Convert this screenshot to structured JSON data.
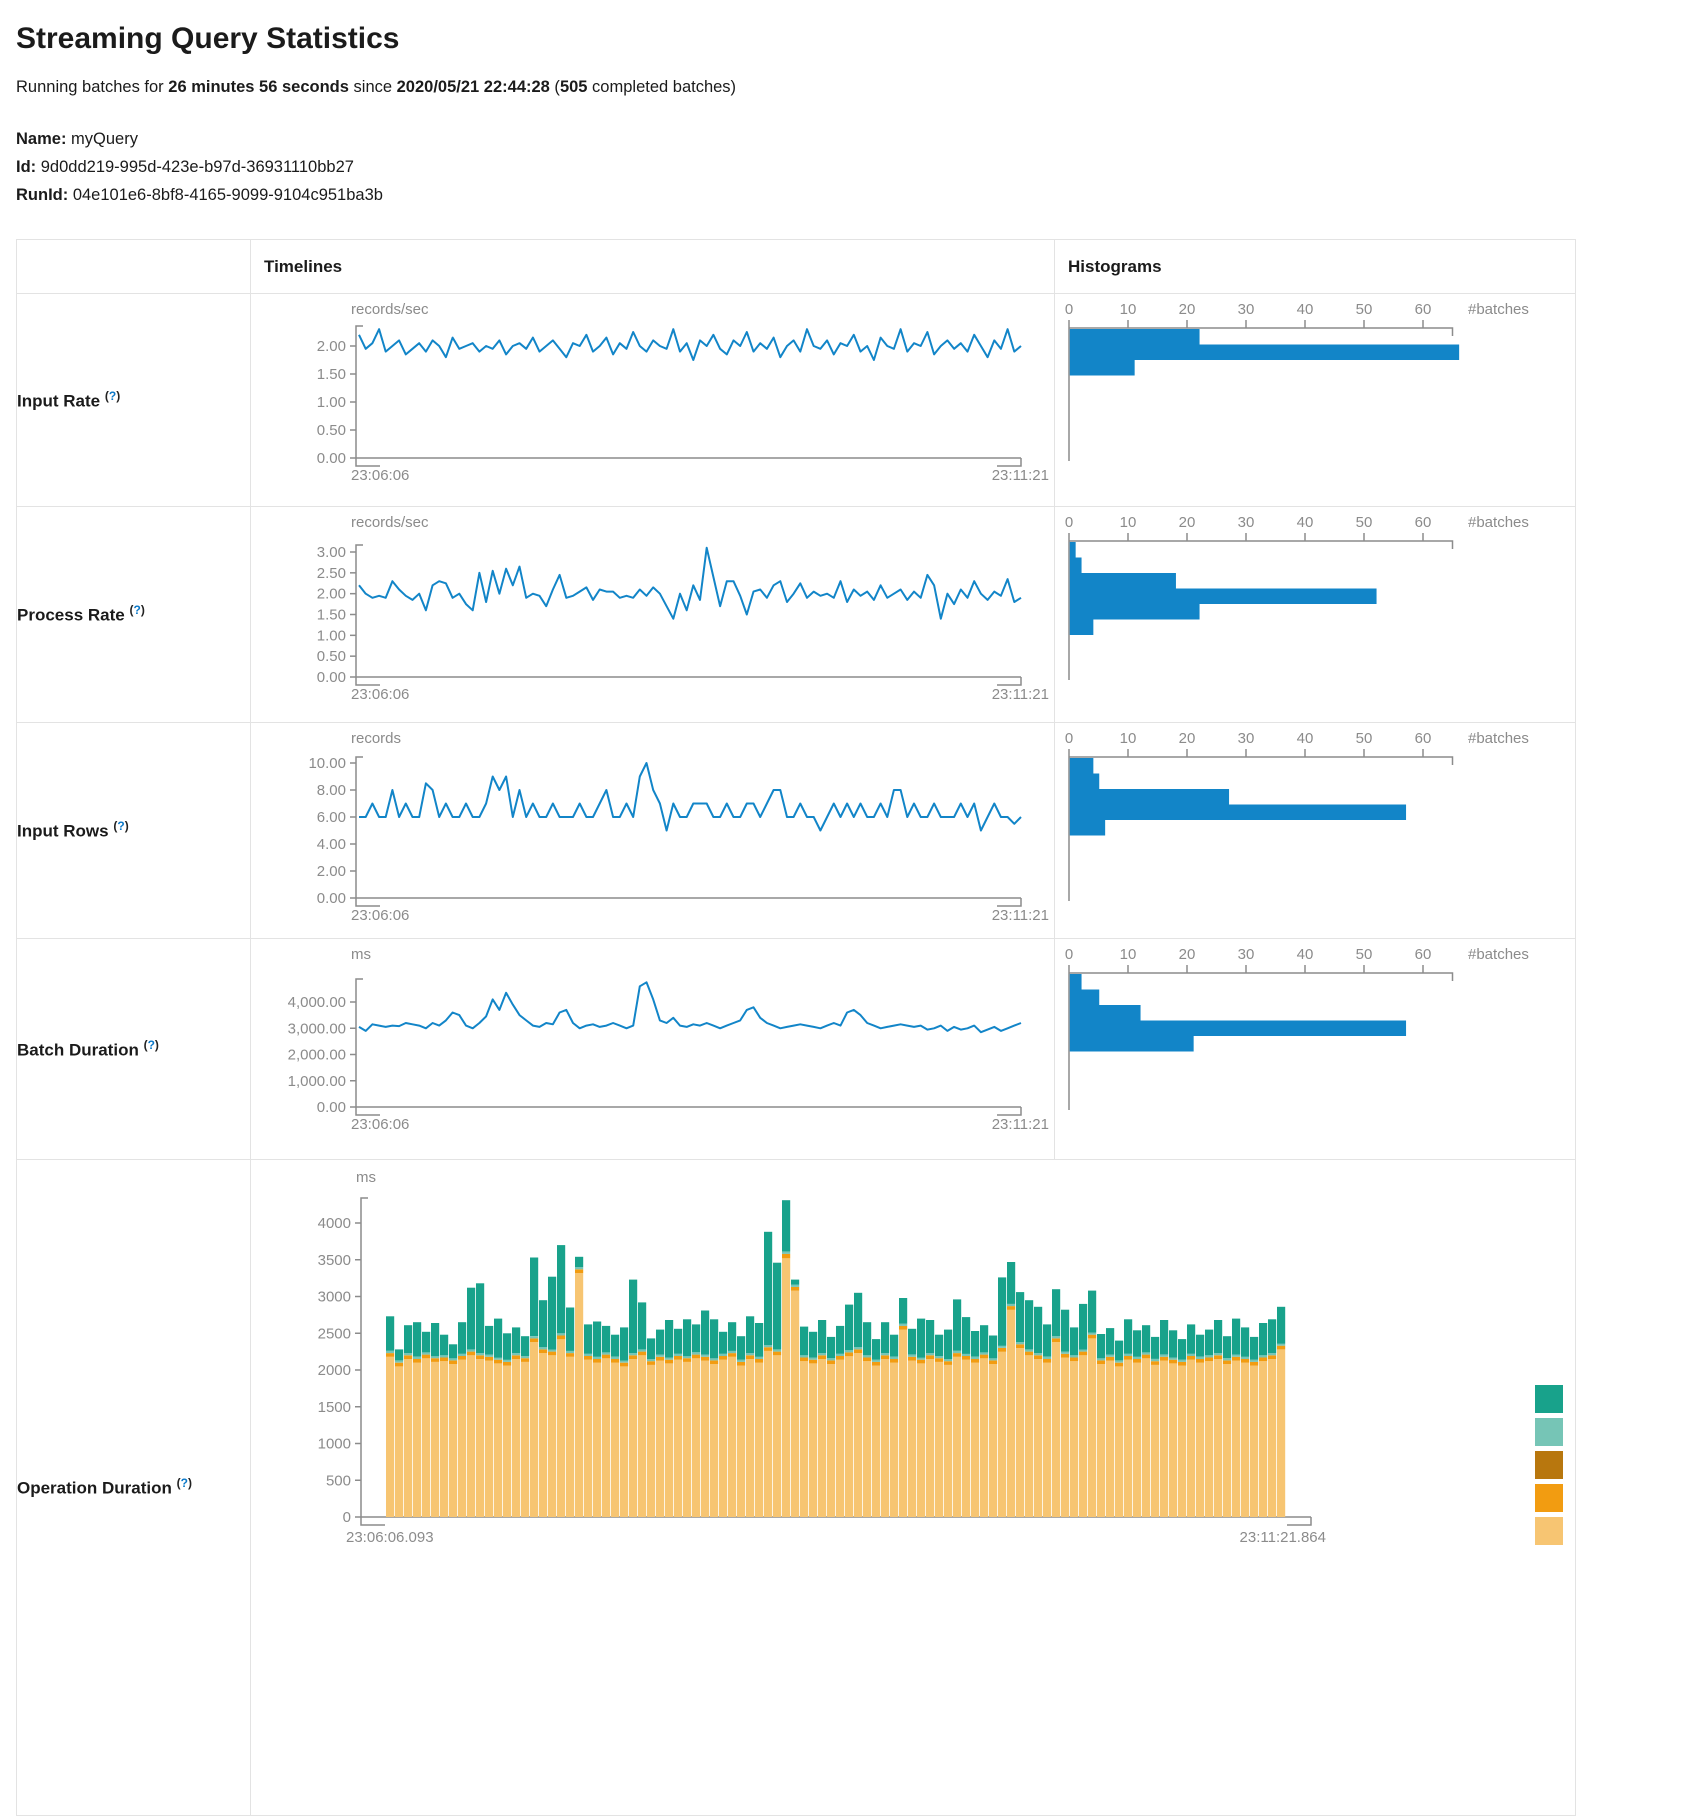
{
  "page": {
    "title": "Streaming Query Statistics",
    "subtitle": {
      "prefix": "Running batches for ",
      "duration": "26 minutes 56 seconds",
      "mid": " since ",
      "start_time": "2020/05/21 22:44:28",
      "paren": " (",
      "completed_count": "505",
      "suffix": " completed batches)"
    },
    "query": {
      "name_label": "Name:",
      "name": " myQuery",
      "id_label": "Id:",
      "id": " 9d0dd219-995d-423e-b97d-36931110bb27",
      "runid_label": "RunId:",
      "runid": " 04e101e6-8bf8-4165-9099-9104c951ba3b"
    }
  },
  "table": {
    "col_timelines": "Timelines",
    "col_histograms": "Histograms",
    "help_open": "(",
    "help_mark": "?",
    "help_close": ")",
    "rows": [
      {
        "label": "Input Rate"
      },
      {
        "label": "Process Rate"
      },
      {
        "label": "Input Rows"
      },
      {
        "label": "Batch Duration"
      },
      {
        "label": "Operation Duration"
      }
    ]
  },
  "chart_data": [
    {
      "id": "input-rate-timeline",
      "type": "line",
      "title": "Input Rate timeline",
      "unit": "records/sec",
      "x_start": "23:06:06",
      "x_end": "23:11:21",
      "y_tick_labels": [
        "2.00",
        "1.50",
        "1.00",
        "0.50",
        "0.00"
      ],
      "y_max_tick": 2.0,
      "color": "#1285c8",
      "values": [
        2.2,
        1.95,
        2.05,
        2.3,
        1.9,
        2.0,
        2.1,
        1.85,
        1.95,
        2.05,
        1.9,
        2.1,
        2.0,
        1.8,
        2.15,
        1.95,
        2.0,
        2.05,
        1.9,
        2.0,
        1.95,
        2.1,
        1.85,
        2.0,
        2.05,
        1.95,
        2.15,
        1.9,
        2.0,
        2.1,
        1.95,
        1.8,
        2.05,
        2.0,
        2.2,
        1.9,
        2.0,
        2.15,
        1.85,
        2.05,
        1.95,
        2.25,
        2.0,
        1.9,
        2.1,
        2.0,
        1.95,
        2.3,
        1.9,
        2.05,
        1.75,
        2.1,
        2.0,
        2.2,
        1.95,
        1.85,
        2.1,
        2.0,
        2.25,
        1.9,
        2.05,
        1.95,
        2.15,
        1.8,
        2.0,
        2.1,
        1.9,
        2.3,
        2.0,
        1.95,
        2.1,
        1.85,
        2.05,
        2.0,
        2.2,
        1.9,
        2.0,
        1.75,
        2.15,
        2.0,
        1.95,
        2.3,
        1.9,
        2.05,
        2.0,
        2.25,
        1.85,
        2.0,
        2.1,
        1.95,
        2.05,
        1.9,
        2.2,
        2.0,
        1.8,
        2.1,
        1.95,
        2.3,
        1.9,
        2.0
      ]
    },
    {
      "id": "input-rate-histogram",
      "type": "hist",
      "title": "Input Rate histogram",
      "xlabel": "#batches",
      "x_tick_labels": [
        "0",
        "10",
        "20",
        "30",
        "40",
        "50",
        "60"
      ],
      "color": "#1285c8",
      "values": [
        22,
        66,
        11
      ]
    },
    {
      "id": "process-rate-timeline",
      "type": "line",
      "title": "Process Rate timeline",
      "unit": "records/sec",
      "x_start": "23:06:06",
      "x_end": "23:11:21",
      "y_tick_labels": [
        "3.00",
        "2.50",
        "2.00",
        "1.50",
        "1.00",
        "0.50",
        "0.00"
      ],
      "y_max_tick": 3.0,
      "color": "#1285c8",
      "values": [
        2.2,
        2.0,
        1.9,
        1.95,
        1.9,
        2.3,
        2.1,
        1.95,
        1.85,
        2.0,
        1.6,
        2.2,
        2.3,
        2.25,
        1.9,
        2.0,
        1.75,
        1.6,
        2.5,
        1.8,
        2.55,
        2.0,
        2.6,
        2.2,
        2.65,
        1.9,
        2.0,
        1.95,
        1.7,
        2.1,
        2.45,
        1.9,
        1.95,
        2.05,
        2.15,
        1.85,
        2.1,
        2.05,
        2.05,
        1.9,
        1.95,
        1.9,
        2.1,
        1.95,
        2.15,
        2.0,
        1.7,
        1.4,
        2.0,
        1.6,
        2.2,
        1.85,
        3.1,
        2.4,
        1.7,
        2.3,
        2.3,
        1.95,
        1.5,
        2.05,
        2.1,
        1.9,
        2.2,
        2.3,
        1.8,
        2.0,
        2.25,
        1.9,
        2.05,
        1.95,
        2.0,
        1.9,
        2.3,
        1.8,
        2.1,
        1.95,
        2.05,
        1.85,
        2.2,
        1.9,
        2.0,
        2.1,
        1.85,
        2.05,
        1.9,
        2.45,
        2.2,
        1.4,
        2.0,
        1.75,
        2.1,
        1.9,
        2.3,
        2.0,
        1.85,
        2.05,
        1.95,
        2.35,
        1.8,
        1.9
      ]
    },
    {
      "id": "process-rate-histogram",
      "type": "hist",
      "title": "Process Rate histogram",
      "xlabel": "#batches",
      "x_tick_labels": [
        "0",
        "10",
        "20",
        "30",
        "40",
        "50",
        "60"
      ],
      "color": "#1285c8",
      "values": [
        1,
        2,
        18,
        52,
        22,
        4
      ]
    },
    {
      "id": "input-rows-timeline",
      "type": "line",
      "title": "Input Rows timeline",
      "unit": "records",
      "x_start": "23:06:06",
      "x_end": "23:11:21",
      "y_tick_labels": [
        "10.00",
        "8.00",
        "6.00",
        "4.00",
        "2.00",
        "0.00"
      ],
      "y_max_tick": 10,
      "color": "#1285c8",
      "values": [
        6,
        6,
        7,
        6,
        6,
        8,
        6,
        7,
        6,
        6,
        8.5,
        8,
        6,
        7,
        6,
        6,
        7,
        6,
        6,
        7,
        9,
        8,
        9,
        6,
        8,
        6,
        7,
        6,
        6,
        7,
        6,
        6,
        6,
        7,
        6,
        6,
        7,
        8,
        6,
        6,
        7,
        6,
        9,
        10,
        8,
        7,
        5,
        7,
        6,
        6,
        7,
        7,
        7,
        6,
        6,
        7,
        6,
        6,
        7,
        7,
        6,
        7,
        8,
        8,
        6,
        6,
        7,
        6,
        6,
        5,
        6,
        7,
        6,
        7,
        6,
        7,
        6,
        6,
        7,
        6,
        8,
        8,
        6,
        7,
        6,
        6,
        7,
        6,
        6,
        6,
        7,
        6,
        7,
        5,
        6,
        7,
        6,
        6,
        5.5,
        6
      ]
    },
    {
      "id": "input-rows-histogram",
      "type": "hist",
      "title": "Input Rows histogram",
      "xlabel": "#batches",
      "x_tick_labels": [
        "0",
        "10",
        "20",
        "30",
        "40",
        "50",
        "60"
      ],
      "color": "#1285c8",
      "values": [
        4,
        5,
        27,
        57,
        6
      ]
    },
    {
      "id": "batch-duration-timeline",
      "type": "line",
      "title": "Batch Duration timeline",
      "unit": "ms",
      "x_start": "23:06:06",
      "x_end": "23:11:21",
      "y_tick_labels": [
        "4,000.00",
        "3,000.00",
        "2,000.00",
        "1,000.00",
        "0.00"
      ],
      "y_max_tick": 4000,
      "color": "#1285c8",
      "values": [
        3050,
        2900,
        3150,
        3100,
        3050,
        3100,
        3080,
        3200,
        3150,
        3100,
        3000,
        3200,
        3100,
        3300,
        3600,
        3500,
        3100,
        3000,
        3200,
        3450,
        4100,
        3700,
        4350,
        3900,
        3500,
        3300,
        3100,
        3050,
        3200,
        3150,
        3600,
        3700,
        3200,
        3000,
        3100,
        3150,
        3050,
        3100,
        3200,
        3100,
        3000,
        3100,
        4600,
        4750,
        4100,
        3300,
        3200,
        3400,
        3100,
        3050,
        3150,
        3100,
        3200,
        3100,
        3000,
        3100,
        3200,
        3300,
        3700,
        3800,
        3400,
        3200,
        3100,
        3000,
        3050,
        3100,
        3150,
        3100,
        3050,
        3000,
        3100,
        3200,
        3100,
        3600,
        3700,
        3500,
        3200,
        3100,
        3000,
        3050,
        3100,
        3150,
        3100,
        3050,
        3100,
        2950,
        3000,
        3100,
        2900,
        3050,
        2950,
        3000,
        3100,
        2850,
        2950,
        3050,
        2900,
        3000,
        3100,
        3200
      ]
    },
    {
      "id": "batch-duration-histogram",
      "type": "hist",
      "title": "Batch Duration histogram",
      "xlabel": "#batches",
      "x_tick_labels": [
        "0",
        "10",
        "20",
        "30",
        "40",
        "50",
        "60"
      ],
      "color": "#1285c8",
      "values": [
        2,
        5,
        12,
        57,
        21
      ]
    },
    {
      "id": "operation-duration",
      "type": "stacked",
      "title": "Operation Duration",
      "unit": "ms",
      "x_start": "23:06:06.093",
      "x_end": "23:11:21.864",
      "y_tick_labels": [
        "4000",
        "3500",
        "3000",
        "2500",
        "2000",
        "1500",
        "1000",
        "500",
        "0"
      ],
      "y_max_tick": 4000,
      "colors": {
        "tan": "#f7c572",
        "orange": "#f29c11",
        "gold": "#b8770e",
        "lightteal": "#76c5b6",
        "teal": "#18a28b"
      },
      "legend_order_top_to_bottom": [
        "teal",
        "lightteal",
        "gold",
        "orange",
        "tan"
      ],
      "stack_order_bottom_up": [
        "tan",
        "orange",
        "lightteal",
        "teal"
      ],
      "bars": [
        [
          2180,
          50,
          30,
          470
        ],
        [
          2050,
          50,
          30,
          150
        ],
        [
          2150,
          50,
          30,
          380
        ],
        [
          2100,
          50,
          30,
          470
        ],
        [
          2160,
          50,
          30,
          280
        ],
        [
          2110,
          50,
          30,
          450
        ],
        [
          2120,
          50,
          30,
          280
        ],
        [
          2080,
          50,
          30,
          190
        ],
        [
          2140,
          50,
          30,
          430
        ],
        [
          2200,
          50,
          30,
          840
        ],
        [
          2150,
          50,
          30,
          950
        ],
        [
          2130,
          50,
          30,
          390
        ],
        [
          2090,
          50,
          30,
          530
        ],
        [
          2060,
          50,
          30,
          360
        ],
        [
          2150,
          50,
          30,
          350
        ],
        [
          2110,
          50,
          30,
          270
        ],
        [
          2380,
          50,
          30,
          1070
        ],
        [
          2230,
          50,
          30,
          640
        ],
        [
          2200,
          50,
          30,
          990
        ],
        [
          2420,
          50,
          30,
          1200
        ],
        [
          2180,
          50,
          30,
          590
        ],
        [
          3320,
          50,
          30,
          140
        ],
        [
          2140,
          50,
          30,
          400
        ],
        [
          2100,
          50,
          30,
          480
        ],
        [
          2160,
          50,
          30,
          360
        ],
        [
          2100,
          50,
          30,
          300
        ],
        [
          2050,
          50,
          30,
          450
        ],
        [
          2150,
          50,
          30,
          1000
        ],
        [
          2200,
          50,
          30,
          640
        ],
        [
          2070,
          50,
          30,
          280
        ],
        [
          2130,
          50,
          30,
          340
        ],
        [
          2090,
          50,
          30,
          510
        ],
        [
          2140,
          50,
          30,
          340
        ],
        [
          2110,
          50,
          30,
          500
        ],
        [
          2160,
          50,
          30,
          380
        ],
        [
          2130,
          50,
          30,
          600
        ],
        [
          2080,
          50,
          30,
          530
        ],
        [
          2140,
          50,
          30,
          300
        ],
        [
          2180,
          50,
          30,
          390
        ],
        [
          2060,
          50,
          30,
          320
        ],
        [
          2150,
          50,
          30,
          500
        ],
        [
          2100,
          50,
          30,
          460
        ],
        [
          2260,
          50,
          30,
          1540
        ],
        [
          2200,
          50,
          30,
          1180
        ],
        [
          3520,
          60,
          30,
          700
        ],
        [
          3080,
          50,
          30,
          70
        ],
        [
          2120,
          50,
          30,
          390
        ],
        [
          2090,
          50,
          30,
          350
        ],
        [
          2150,
          50,
          30,
          450
        ],
        [
          2080,
          50,
          30,
          290
        ],
        [
          2140,
          50,
          30,
          380
        ],
        [
          2190,
          50,
          30,
          620
        ],
        [
          2230,
          50,
          30,
          740
        ],
        [
          2120,
          50,
          30,
          450
        ],
        [
          2060,
          50,
          30,
          280
        ],
        [
          2150,
          50,
          30,
          420
        ],
        [
          2100,
          50,
          30,
          300
        ],
        [
          2550,
          50,
          30,
          350
        ],
        [
          2130,
          50,
          30,
          350
        ],
        [
          2090,
          50,
          30,
          530
        ],
        [
          2150,
          50,
          30,
          450
        ],
        [
          2110,
          50,
          30,
          290
        ],
        [
          2070,
          50,
          30,
          400
        ],
        [
          2180,
          50,
          30,
          700
        ],
        [
          2140,
          50,
          30,
          500
        ],
        [
          2100,
          50,
          30,
          350
        ],
        [
          2160,
          50,
          30,
          370
        ],
        [
          2080,
          50,
          30,
          310
        ],
        [
          2250,
          50,
          30,
          930
        ],
        [
          2820,
          50,
          30,
          570
        ],
        [
          2300,
          50,
          30,
          680
        ],
        [
          2200,
          50,
          30,
          670
        ],
        [
          2150,
          50,
          30,
          630
        ],
        [
          2100,
          50,
          30,
          440
        ],
        [
          2380,
          50,
          30,
          640
        ],
        [
          2170,
          50,
          30,
          570
        ],
        [
          2120,
          50,
          30,
          380
        ],
        [
          2200,
          50,
          30,
          620
        ],
        [
          2430,
          50,
          30,
          570
        ],
        [
          2080,
          50,
          30,
          330
        ],
        [
          2130,
          50,
          30,
          360
        ],
        [
          2050,
          50,
          30,
          270
        ],
        [
          2140,
          50,
          30,
          470
        ],
        [
          2100,
          50,
          30,
          360
        ],
        [
          2160,
          50,
          30,
          370
        ],
        [
          2070,
          50,
          30,
          300
        ],
        [
          2130,
          50,
          30,
          470
        ],
        [
          2090,
          50,
          30,
          370
        ],
        [
          2060,
          50,
          30,
          280
        ],
        [
          2140,
          50,
          30,
          400
        ],
        [
          2100,
          50,
          30,
          300
        ],
        [
          2120,
          50,
          30,
          350
        ],
        [
          2150,
          50,
          30,
          450
        ],
        [
          2080,
          50,
          30,
          300
        ],
        [
          2130,
          50,
          30,
          490
        ],
        [
          2100,
          50,
          30,
          400
        ],
        [
          2060,
          50,
          30,
          310
        ],
        [
          2120,
          50,
          30,
          440
        ],
        [
          2150,
          50,
          30,
          460
        ],
        [
          2280,
          50,
          30,
          500
        ]
      ]
    }
  ]
}
